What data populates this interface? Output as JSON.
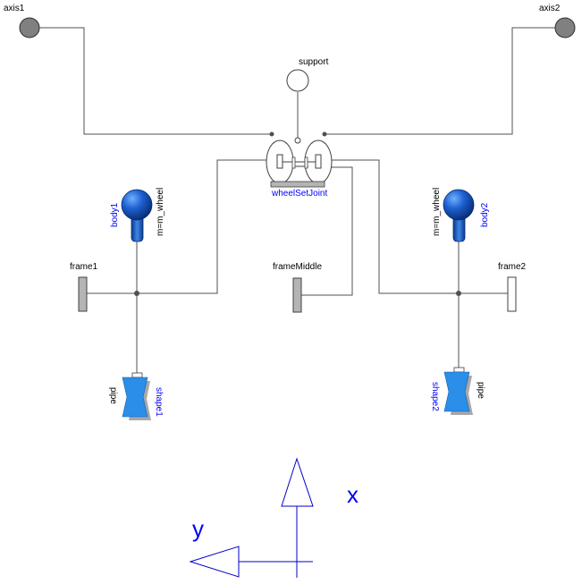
{
  "labels": {
    "axis1": "axis1",
    "axis2": "axis2",
    "support": "support",
    "wheel_set_joint": "wheelSetJoint",
    "body1": "body1",
    "body2": "body2",
    "body_param_left": "m=m_wheel",
    "body_param_right": "m=m_wheel",
    "frame1": "frame1",
    "frame_middle": "frameMiddle",
    "frame2": "frame2",
    "shape1": "shape1",
    "shape2": "shape2",
    "shape_type_left": "pipe",
    "shape_type_right": "pipe",
    "axis_x": "x",
    "axis_y": "y"
  },
  "colors": {
    "connection_line": "#505050",
    "axis_arrows": "#0000cc",
    "body_blue": "#0a4fb0",
    "shape_blue": "#2b8ee8",
    "label_blue": "#0000ff",
    "frame_fill": "#b4b4b4"
  },
  "icons": {
    "axis_flange": "filled-circle-icon",
    "support_flange": "hollow-circle-icon",
    "body": "sphere-body-icon",
    "shape": "pipe-shape-icon",
    "frame": "frame-rectangle-icon"
  }
}
